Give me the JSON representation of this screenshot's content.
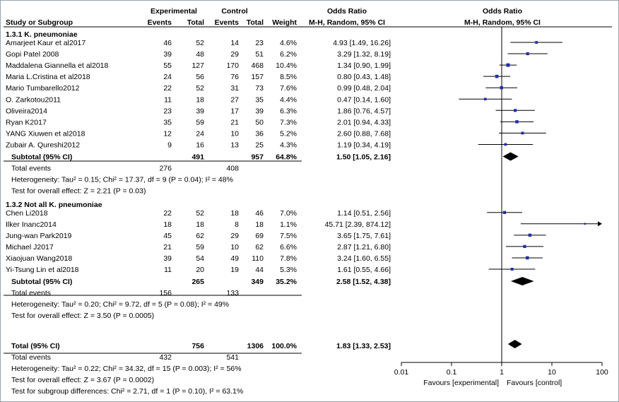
{
  "headers": {
    "study": "Study or Subgroup",
    "experimental": "Experimental",
    "control": "Control",
    "events": "Events",
    "total": "Total",
    "weight": "Weight",
    "odds_ratio": "Odds Ratio",
    "method": "M-H, Random, 95% CI"
  },
  "chart_data": {
    "type": "forest",
    "x_scale": "log",
    "xlim": [
      0.01,
      100
    ],
    "x_ticks": [
      0.01,
      0.1,
      1,
      10,
      100
    ],
    "x_tick_labels": [
      "0.01",
      "0.1",
      "1",
      "10",
      "100"
    ],
    "favours_left": "Favours [experimental]",
    "favours_right": "Favours [control]",
    "colors": {
      "marker": "#1f2fa8",
      "diamond": "#000000",
      "line": "#000000"
    },
    "subgroups": [
      {
        "title": "1.3.1 K. pneumoniae",
        "studies": [
          {
            "name": "Amarjeet Kaur et al2017",
            "e_events": "46",
            "e_total": "52",
            "c_events": "14",
            "c_total": "23",
            "weight": "4.6%",
            "ci_text": "4.93 [1.49, 16.26]",
            "or": 4.93,
            "lo": 1.49,
            "hi": 16.26
          },
          {
            "name": "Gopi Patel 2008",
            "e_events": "39",
            "e_total": "48",
            "c_events": "29",
            "c_total": "51",
            "weight": "6.2%",
            "ci_text": "3.29 [1.32, 8.19]",
            "or": 3.29,
            "lo": 1.32,
            "hi": 8.19
          },
          {
            "name": "Maddalena Giannella et al2018",
            "e_events": "55",
            "e_total": "127",
            "c_events": "170",
            "c_total": "468",
            "weight": "10.4%",
            "ci_text": "1.34 [0.90, 1.99]",
            "or": 1.34,
            "lo": 0.9,
            "hi": 1.99
          },
          {
            "name": "Maria L.Cristina et al2018",
            "e_events": "24",
            "e_total": "56",
            "c_events": "76",
            "c_total": "157",
            "weight": "8.5%",
            "ci_text": "0.80 [0.43, 1.48]",
            "or": 0.8,
            "lo": 0.43,
            "hi": 1.48
          },
          {
            "name": "Mario Tumbarello2012",
            "e_events": "22",
            "e_total": "52",
            "c_events": "31",
            "c_total": "73",
            "weight": "7.6%",
            "ci_text": "0.99 [0.48, 2.04]",
            "or": 0.99,
            "lo": 0.48,
            "hi": 2.04
          },
          {
            "name": "O. Zarkotou2011",
            "e_events": "11",
            "e_total": "18",
            "c_events": "27",
            "c_total": "35",
            "weight": "4.4%",
            "ci_text": "0.47 [0.14, 1.60]",
            "or": 0.47,
            "lo": 0.14,
            "hi": 1.6
          },
          {
            "name": "Oliveira2014",
            "e_events": "23",
            "e_total": "39",
            "c_events": "17",
            "c_total": "39",
            "weight": "6.3%",
            "ci_text": "1.86 [0.76, 4.57]",
            "or": 1.86,
            "lo": 0.76,
            "hi": 4.57
          },
          {
            "name": "Ryan K2017",
            "e_events": "35",
            "e_total": "59",
            "c_events": "21",
            "c_total": "50",
            "weight": "7.3%",
            "ci_text": "2.01 [0.94, 4.33]",
            "or": 2.01,
            "lo": 0.94,
            "hi": 4.33
          },
          {
            "name": "YANG Xiuwen et al2018",
            "e_events": "12",
            "e_total": "24",
            "c_events": "10",
            "c_total": "36",
            "weight": "5.2%",
            "ci_text": "2.60 [0.88, 7.68]",
            "or": 2.6,
            "lo": 0.88,
            "hi": 7.68
          },
          {
            "name": "Zubair A. Qureshi2012",
            "e_events": "9",
            "e_total": "16",
            "c_events": "13",
            "c_total": "25",
            "weight": "4.3%",
            "ci_text": "1.19 [0.34, 4.19]",
            "or": 1.19,
            "lo": 0.34,
            "hi": 4.19
          }
        ],
        "subtotal": {
          "label": "Subtotal (95% CI)",
          "e_total": "491",
          "c_total": "957",
          "weight": "64.8%",
          "ci_text": "1.50 [1.05, 2.16]",
          "or": 1.5,
          "lo": 1.05,
          "hi": 2.16
        },
        "total_events": {
          "label": "Total events",
          "e": "276",
          "c": "408"
        },
        "heterogeneity": "Heterogeneity: Tau² = 0.15; Chi² = 17.37, df = 9 (P = 0.04); I² = 48%",
        "overall_effect": "Test for overall effect: Z = 2.21 (P = 0.03)"
      },
      {
        "title": "1.3.2 Not all K. pneumoniae",
        "studies": [
          {
            "name": "Chen Li2018",
            "e_events": "22",
            "e_total": "52",
            "c_events": "18",
            "c_total": "46",
            "weight": "7.0%",
            "ci_text": "1.14 [0.51, 2.56]",
            "or": 1.14,
            "lo": 0.51,
            "hi": 2.56
          },
          {
            "name": "Ilker Inanc2014",
            "e_events": "18",
            "e_total": "18",
            "c_events": "8",
            "c_total": "18",
            "weight": "1.1%",
            "ci_text": "45.71 [2.39, 874.12]",
            "or": 45.71,
            "lo": 2.39,
            "hi": 874.12
          },
          {
            "name": "Jung-wan Park2019",
            "e_events": "45",
            "e_total": "62",
            "c_events": "29",
            "c_total": "69",
            "weight": "7.5%",
            "ci_text": "3.65 [1.75, 7.61]",
            "or": 3.65,
            "lo": 1.75,
            "hi": 7.61
          },
          {
            "name": "Michael J2017",
            "e_events": "21",
            "e_total": "59",
            "c_events": "10",
            "c_total": "62",
            "weight": "6.6%",
            "ci_text": "2.87 [1.21, 6.80]",
            "or": 2.87,
            "lo": 1.21,
            "hi": 6.8
          },
          {
            "name": "Xiaojuan Wang2018",
            "e_events": "39",
            "e_total": "54",
            "c_events": "49",
            "c_total": "110",
            "weight": "7.8%",
            "ci_text": "3.24 [1.60, 6.55]",
            "or": 3.24,
            "lo": 1.6,
            "hi": 6.55
          },
          {
            "name": "Yi-Tsung Lin et al2018",
            "e_events": "11",
            "e_total": "20",
            "c_events": "19",
            "c_total": "44",
            "weight": "5.3%",
            "ci_text": "1.61 [0.55, 4.66]",
            "or": 1.61,
            "lo": 0.55,
            "hi": 4.66
          }
        ],
        "subtotal": {
          "label": "Subtotal (95% CI)",
          "e_total": "265",
          "c_total": "349",
          "weight": "35.2%",
          "ci_text": "2.58 [1.52, 4.38]",
          "or": 2.58,
          "lo": 1.52,
          "hi": 4.38
        },
        "total_events": {
          "label": "Total events",
          "e": "156",
          "c": "133"
        },
        "heterogeneity": "Heterogeneity: Tau² = 0.20; Chi² = 9.72, df = 5 (P = 0.08); I² = 49%",
        "overall_effect": "Test for overall effect: Z = 3.50 (P = 0.0005)"
      }
    ],
    "overall": {
      "label": "Total (95% CI)",
      "e_total": "756",
      "c_total": "1306",
      "weight": "100.0%",
      "ci_text": "1.83 [1.33, 2.53]",
      "or": 1.83,
      "lo": 1.33,
      "hi": 2.53,
      "total_events": {
        "label": "Total events",
        "e": "432",
        "c": "541"
      },
      "heterogeneity": "Heterogeneity: Tau² = 0.22; Chi² = 34.32, df = 15 (P = 0.003); I² = 56%",
      "overall_effect": "Test for overall effect: Z = 3.67 (P = 0.0002)",
      "subgroup_differences": "Test for subgroup differences: Chi² = 2.71, df = 1 (P = 0.10), I² = 63.1%"
    }
  }
}
